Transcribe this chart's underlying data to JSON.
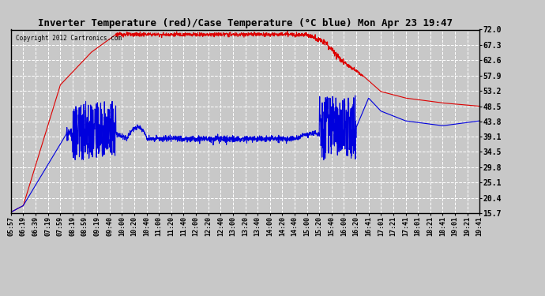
{
  "title": "Inverter Temperature (red)/Case Temperature (°C blue) Mon Apr 23 19:47",
  "copyright": "Copyright 2012 Cartronics.com",
  "background_color": "#c8c8c8",
  "plot_bg_color": "#c8c8c8",
  "grid_color": "#ffffff",
  "yticks": [
    15.7,
    20.4,
    25.1,
    29.8,
    34.5,
    39.1,
    43.8,
    48.5,
    53.2,
    57.9,
    62.6,
    67.3,
    72.0
  ],
  "ymin": 15.7,
  "ymax": 72.0,
  "x_labels": [
    "05:57",
    "06:19",
    "06:39",
    "07:19",
    "07:59",
    "08:19",
    "08:59",
    "09:19",
    "09:40",
    "10:00",
    "10:20",
    "10:40",
    "11:00",
    "11:20",
    "11:40",
    "12:00",
    "12:20",
    "12:40",
    "13:00",
    "13:20",
    "13:40",
    "14:00",
    "14:20",
    "14:40",
    "15:00",
    "15:20",
    "15:40",
    "16:00",
    "16:20",
    "16:41",
    "17:01",
    "17:21",
    "17:41",
    "18:01",
    "18:21",
    "18:41",
    "19:01",
    "19:21",
    "19:41"
  ],
  "red_color": "#dd0000",
  "blue_color": "#0000dd",
  "line_width": 0.8
}
